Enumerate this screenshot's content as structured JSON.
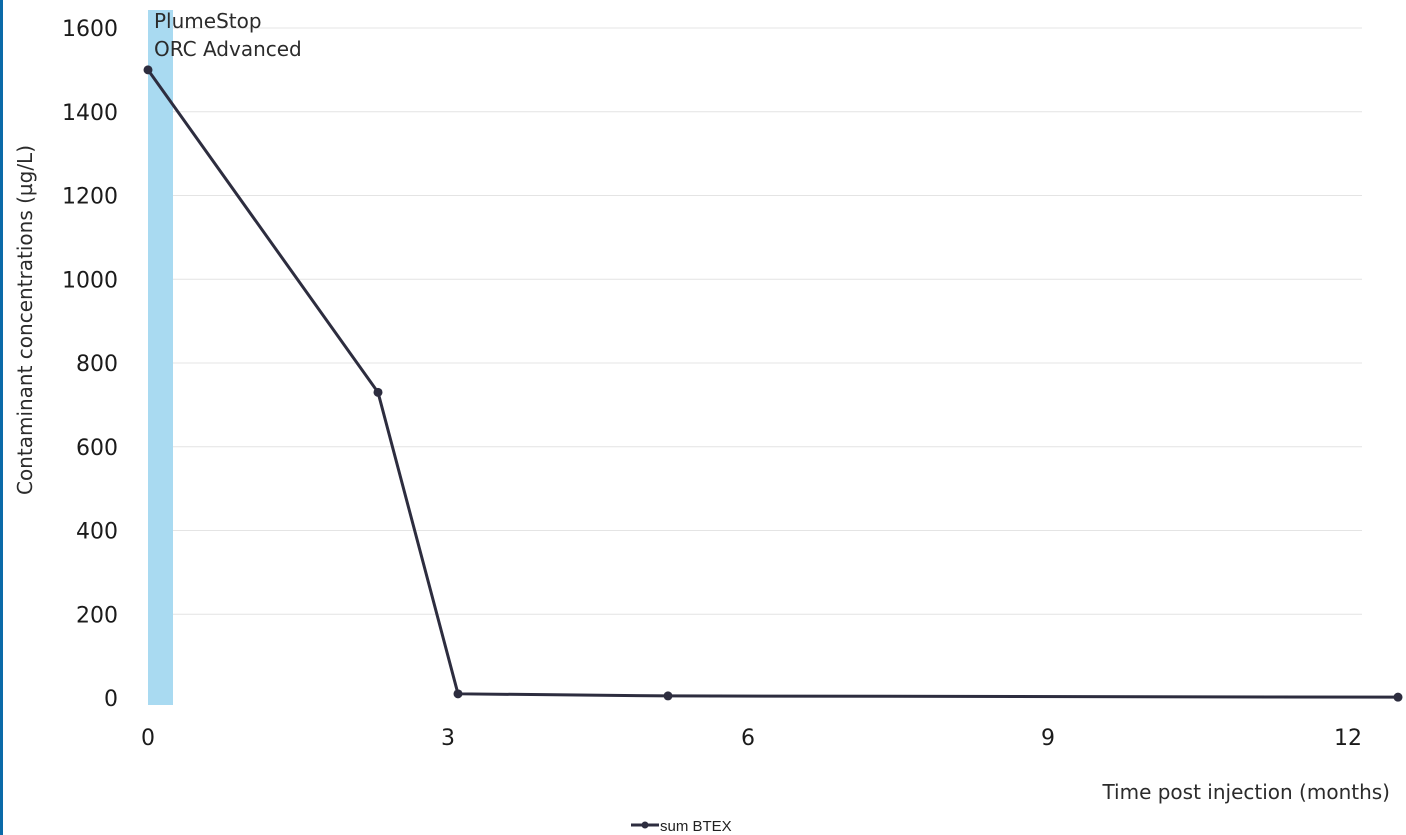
{
  "chart_data": {
    "type": "line",
    "title": "",
    "xlabel": "Time post injection (months)",
    "ylabel": "Contaminant concentrations (µg/L)",
    "xlim": [
      0,
      12
    ],
    "ylim": [
      0,
      1600
    ],
    "x_ticks": [
      "0",
      "3",
      "6",
      "9",
      "12"
    ],
    "y_ticks": [
      "0",
      "200",
      "400",
      "600",
      "800",
      "1000",
      "1200",
      "1400",
      "1600"
    ],
    "grid": true,
    "legend_position": "bottom-center",
    "series": [
      {
        "name": "sum BTEX",
        "color": "#2d2d3f",
        "x": [
          0,
          2.3,
          3.1,
          5.2,
          12.5
        ],
        "y": [
          1500,
          730,
          10,
          5,
          2
        ]
      }
    ],
    "annotations": {
      "band": {
        "label_lines": [
          "PlumeStop",
          "ORC Advanced"
        ],
        "color": "#a9daf1",
        "x_start": 0,
        "x_end": 0.25
      }
    }
  },
  "colors": {
    "edge": "#0b6aa8",
    "line": "#2d2d3f",
    "grid": "#e4e4e4"
  }
}
